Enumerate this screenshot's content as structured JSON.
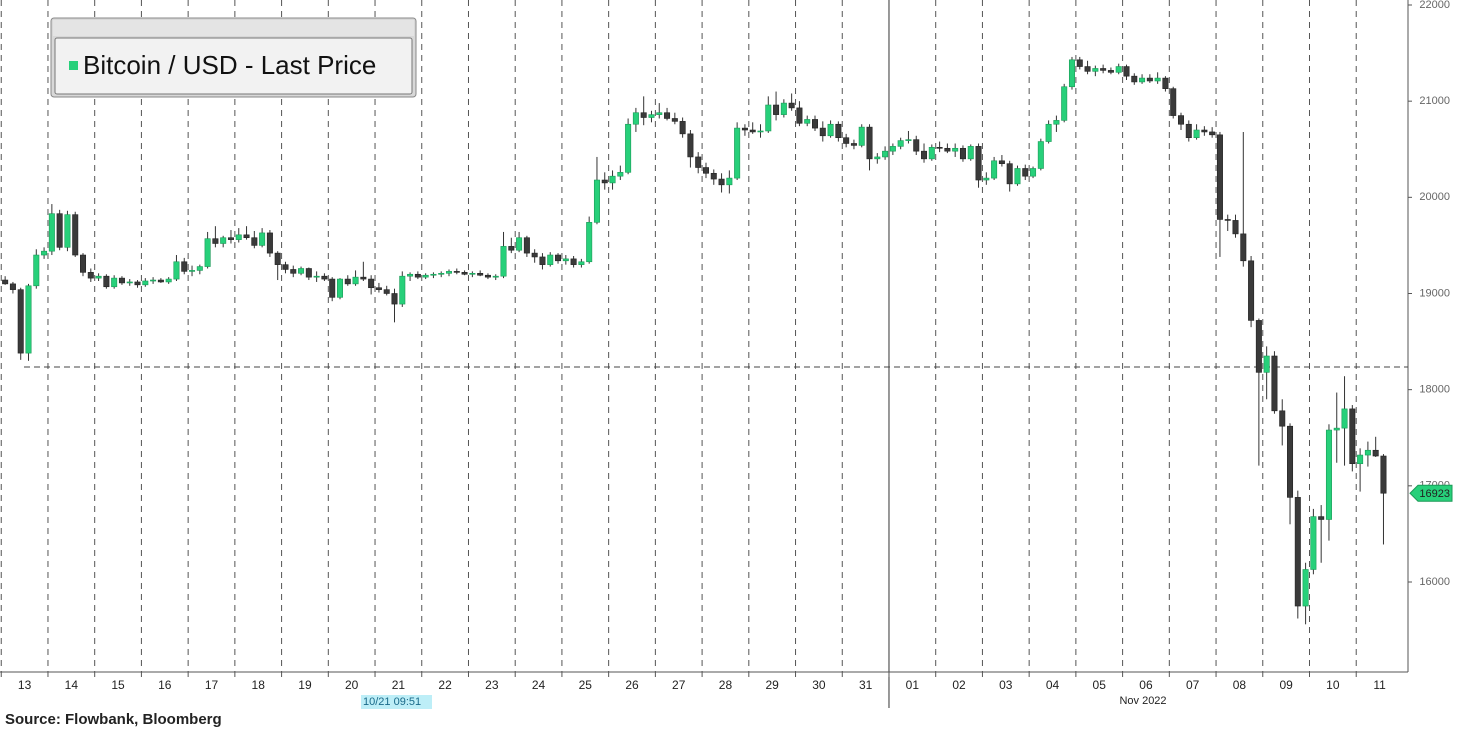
{
  "chart_data": {
    "type": "candlestick",
    "legend": "Bitcoin / USD - Last Price",
    "up_color": "#27d07a",
    "down_color": "#3a3a3a",
    "source": "Source: Flowbank, Bloomberg",
    "cursor_label": "10/21 09:51",
    "month_label": "Nov 2022",
    "reference_line": 18236,
    "ylim": [
      15064,
      22052
    ],
    "yticks": [
      16000,
      17000,
      18000,
      19000,
      20000,
      21000,
      22000
    ],
    "xlim": [
      -0.66,
      180.15
    ],
    "xticks": [
      {
        "value": -0.5,
        "label": "13"
      },
      {
        "value": 5.5,
        "label": "14"
      },
      {
        "value": 11.5,
        "label": "15"
      },
      {
        "value": 17.5,
        "label": "16"
      },
      {
        "value": 23.5,
        "label": "17"
      },
      {
        "value": 29.5,
        "label": "18"
      },
      {
        "value": 35.5,
        "label": "19"
      },
      {
        "value": 41.5,
        "label": "20"
      },
      {
        "value": 47.5,
        "label": "21"
      },
      {
        "value": 53.5,
        "label": "22"
      },
      {
        "value": 59.5,
        "label": "23"
      },
      {
        "value": 65.5,
        "label": "24"
      },
      {
        "value": 71.5,
        "label": "25"
      },
      {
        "value": 77.5,
        "label": "26"
      },
      {
        "value": 83.5,
        "label": "27"
      },
      {
        "value": 89.5,
        "label": "28"
      },
      {
        "value": 95.5,
        "label": "29"
      },
      {
        "value": 101.5,
        "label": "30"
      },
      {
        "value": 107.5,
        "label": "31"
      },
      {
        "value": 113.5,
        "label": "01"
      },
      {
        "value": 119.5,
        "label": "02"
      },
      {
        "value": 125.5,
        "label": "03"
      },
      {
        "value": 131.5,
        "label": "04"
      },
      {
        "value": 137.5,
        "label": "05"
      },
      {
        "value": 143.5,
        "label": "06"
      },
      {
        "value": 149.5,
        "label": "07"
      },
      {
        "value": 155.5,
        "label": "08"
      },
      {
        "value": 161.5,
        "label": "09"
      },
      {
        "value": 167.5,
        "label": "10"
      },
      {
        "value": 173.5,
        "label": "11"
      }
    ],
    "open": [
      19140,
      19100,
      19040,
      18380,
      19080,
      19400,
      19440,
      19830,
      19480,
      19820,
      19400,
      19220,
      19160,
      19180,
      19070,
      19160,
      19110,
      19120,
      19090,
      19130,
      19140,
      19120,
      19150,
      19330,
      19230,
      19240,
      19280,
      19570,
      19520,
      19580,
      19560,
      19610,
      19580,
      19500,
      19630,
      19420,
      19300,
      19250,
      19210,
      19260,
      19170,
      19180,
      19150,
      18960,
      19150,
      19100,
      19170,
      19150,
      19060,
      19040,
      19000,
      18890,
      19180,
      19200,
      19170,
      19190,
      19200,
      19210,
      19230,
      19220,
      19200,
      19210,
      19190,
      19170,
      19180,
      19490,
      19450,
      19580,
      19420,
      19380,
      19300,
      19400,
      19340,
      19360,
      19300,
      19330,
      19740,
      20180,
      20150,
      20220,
      20260,
      20760,
      20880,
      20830,
      20860,
      20880,
      20820,
      20790,
      20660,
      20420,
      20310,
      20250,
      20190,
      20130,
      20200,
      20720,
      20700,
      20680,
      20690,
      20960,
      20860,
      20980,
      20930,
      20770,
      20810,
      20720,
      20640,
      20760,
      20620,
      20560,
      20540,
      20730,
      20400,
      20420,
      20480,
      20530,
      20590,
      20600,
      20480,
      20400,
      20520,
      20510,
      20480,
      20510,
      20400,
      20530,
      20180,
      20200,
      20380,
      20350,
      20140,
      20300,
      20220,
      20300,
      20580,
      20760,
      20800,
      21150,
      21430,
      21360,
      21310,
      21340,
      21320,
      21300,
      21360,
      21260,
      21200,
      21240,
      21210,
      21240,
      21130,
      20850,
      20760,
      20620,
      20700,
      20680,
      20650,
      19770,
      19760,
      19620,
      19340,
      18720,
      18180,
      18350,
      17780,
      17620,
      16880,
      15750,
      16130,
      16680,
      16650,
      17580,
      17600,
      17800,
      17230,
      17320,
      17370,
      17310
    ],
    "high": [
      19180,
      19120,
      19060,
      19100,
      19460,
      19480,
      19930,
      19870,
      19860,
      19850,
      19420,
      19260,
      19210,
      19200,
      19190,
      19180,
      19150,
      19140,
      19160,
      19170,
      19160,
      19170,
      19400,
      19370,
      19290,
      19300,
      19640,
      19700,
      19600,
      19660,
      19680,
      19700,
      19650,
      19680,
      19660,
      19440,
      19330,
      19290,
      19280,
      19270,
      19230,
      19210,
      19170,
      19160,
      19190,
      19240,
      19330,
      19190,
      19110,
      19080,
      19050,
      19230,
      19220,
      19230,
      19210,
      19220,
      19230,
      19250,
      19260,
      19240,
      19230,
      19240,
      19210,
      19200,
      19640,
      19580,
      19640,
      19600,
      19460,
      19420,
      19430,
      19420,
      19400,
      19390,
      19360,
      19800,
      20420,
      20260,
      20280,
      20330,
      20820,
      20930,
      21050,
      20900,
      20980,
      20930,
      20880,
      20830,
      20700,
      20470,
      20360,
      20290,
      20250,
      20280,
      20780,
      20760,
      20780,
      20760,
      21050,
      21100,
      21020,
      21080,
      21000,
      20850,
      20850,
      20790,
      20800,
      20790,
      20660,
      20600,
      20760,
      20760,
      20460,
      20530,
      20560,
      20620,
      20690,
      20640,
      20560,
      20550,
      20580,
      20560,
      20560,
      20540,
      20550,
      20560,
      20260,
      20420,
      20440,
      20380,
      20330,
      20340,
      20320,
      20610,
      20800,
      20850,
      21180,
      21460,
      21460,
      21420,
      21370,
      21380,
      21350,
      21390,
      21380,
      21290,
      21280,
      21280,
      21300,
      21260,
      21150,
      20880,
      20800,
      20760,
      20740,
      20730,
      20680,
      19820,
      19820,
      20680,
      19390,
      18740,
      18450,
      18400,
      17900,
      17650,
      16950,
      16200,
      16760,
      16800,
      17640,
      17970,
      18140,
      17840,
      17390,
      17460,
      17510,
      17330
    ],
    "low": [
      19090,
      19000,
      18310,
      18300,
      19050,
      19360,
      19400,
      19450,
      19440,
      19380,
      19180,
      19120,
      19130,
      19050,
      19050,
      19090,
      19080,
      19060,
      19070,
      19100,
      19110,
      19100,
      19130,
      19200,
      19180,
      19200,
      19260,
      19480,
      19480,
      19520,
      19530,
      19560,
      19470,
      19480,
      19380,
      19140,
      19210,
      19170,
      19190,
      19140,
      19120,
      19130,
      18920,
      18940,
      19080,
      19080,
      19130,
      18990,
      19010,
      18980,
      18700,
      18860,
      19130,
      19150,
      19150,
      19160,
      19170,
      19180,
      19200,
      19190,
      19170,
      19180,
      19150,
      19140,
      19160,
      19420,
      19430,
      19380,
      19320,
      19250,
      19280,
      19310,
      19300,
      19270,
      19270,
      19310,
      19720,
      20080,
      20080,
      20180,
      20240,
      20680,
      20750,
      20780,
      20820,
      20800,
      20760,
      20620,
      20310,
      20250,
      20200,
      20130,
      20050,
      20040,
      20180,
      20640,
      20660,
      20620,
      20670,
      20800,
      20830,
      20900,
      20740,
      20740,
      20690,
      20580,
      20620,
      20580,
      20520,
      20500,
      20520,
      20280,
      20350,
      20390,
      20440,
      20500,
      20560,
      20440,
      20360,
      20380,
      20470,
      20460,
      20420,
      20370,
      20380,
      20100,
      20130,
      20180,
      20320,
      20060,
      20120,
      20180,
      20200,
      20280,
      20560,
      20680,
      20780,
      21120,
      21330,
      21280,
      21260,
      21290,
      21280,
      21280,
      21220,
      21170,
      21180,
      21190,
      21180,
      21100,
      20820,
      20700,
      20580,
      20600,
      20640,
      20620,
      19380,
      19650,
      19580,
      19280,
      18650,
      17210,
      17900,
      17750,
      17420,
      16600,
      15620,
      15560,
      16080,
      16200,
      16430,
      17240,
      17210,
      17150,
      16940,
      17200,
      17300,
      16390
    ],
    "close": [
      19100,
      19040,
      18380,
      19080,
      19400,
      19440,
      19830,
      19480,
      19820,
      19400,
      19220,
      19160,
      19180,
      19070,
      19160,
      19110,
      19120,
      19090,
      19130,
      19140,
      19120,
      19150,
      19330,
      19230,
      19240,
      19280,
      19570,
      19520,
      19580,
      19560,
      19610,
      19580,
      19500,
      19630,
      19420,
      19300,
      19250,
      19210,
      19260,
      19170,
      19180,
      19150,
      18960,
      19150,
      19100,
      19170,
      19150,
      19060,
      19040,
      19000,
      18890,
      19180,
      19200,
      19170,
      19190,
      19200,
      19210,
      19230,
      19220,
      19200,
      19210,
      19190,
      19170,
      19180,
      19490,
      19450,
      19580,
      19420,
      19380,
      19300,
      19400,
      19340,
      19360,
      19300,
      19330,
      19740,
      20180,
      20150,
      20220,
      20260,
      20760,
      20880,
      20830,
      20860,
      20880,
      20820,
      20790,
      20660,
      20420,
      20310,
      20250,
      20190,
      20130,
      20200,
      20720,
      20700,
      20680,
      20690,
      20960,
      20860,
      20980,
      20930,
      20770,
      20810,
      20720,
      20640,
      20760,
      20620,
      20560,
      20540,
      20730,
      20400,
      20420,
      20480,
      20530,
      20590,
      20600,
      20480,
      20400,
      20520,
      20510,
      20480,
      20510,
      20400,
      20530,
      20180,
      20200,
      20380,
      20350,
      20140,
      20300,
      20220,
      20300,
      20580,
      20760,
      20800,
      21150,
      21430,
      21360,
      21310,
      21340,
      21320,
      21300,
      21360,
      21260,
      21200,
      21240,
      21210,
      21240,
      21130,
      20850,
      20760,
      20620,
      20700,
      20680,
      20650,
      19770,
      19760,
      19620,
      19340,
      18720,
      18180,
      18350,
      17780,
      17620,
      16880,
      15750,
      16130,
      16680,
      16650,
      17580,
      17600,
      17800,
      17230,
      17320,
      17370,
      17310,
      16923
    ]
  }
}
